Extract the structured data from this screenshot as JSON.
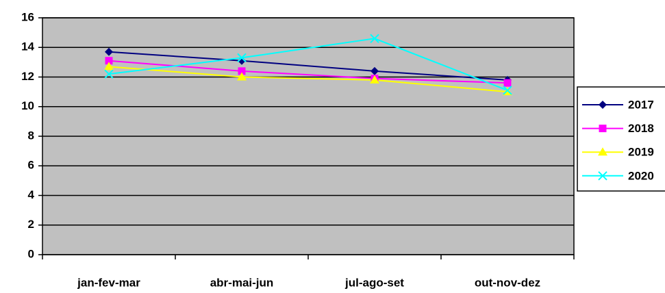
{
  "chart_data": {
    "type": "line",
    "categories": [
      "jan-fev-mar",
      "abr-mai-jun",
      "jul-ago-set",
      "out-nov-dez"
    ],
    "series": [
      {
        "name": "2017",
        "color": "#000080",
        "marker": "diamond",
        "values": [
          13.7,
          13.1,
          12.4,
          11.8
        ]
      },
      {
        "name": "2018",
        "color": "#ff00ff",
        "marker": "square",
        "values": [
          13.1,
          12.4,
          11.9,
          11.6
        ]
      },
      {
        "name": "2019",
        "color": "#ffff00",
        "marker": "triangle",
        "values": [
          12.7,
          12.0,
          11.8,
          11.0
        ]
      },
      {
        "name": "2020",
        "color": "#00ffff",
        "marker": "x",
        "values": [
          12.2,
          13.3,
          14.6,
          11.1
        ]
      }
    ],
    "ylim": [
      0,
      16
    ],
    "yticks": [
      0,
      2,
      4,
      6,
      8,
      10,
      12,
      14,
      16
    ],
    "grid": true,
    "legend": "right",
    "plot_background": "#c0c0c0"
  }
}
